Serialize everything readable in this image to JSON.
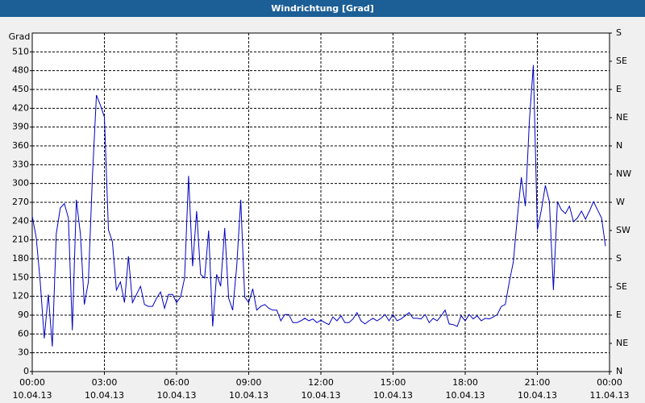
{
  "chart_data": {
    "type": "line",
    "title": "Windrichtung [Grad]",
    "y_axis_label": "Grad",
    "x": [
      0,
      10,
      20,
      30,
      40,
      50,
      60,
      70,
      80,
      90,
      100,
      110,
      120,
      130,
      140,
      150,
      160,
      170,
      180,
      190,
      200,
      210,
      220,
      230,
      240,
      250,
      260,
      270,
      280,
      290,
      300,
      310,
      320,
      330,
      340,
      350,
      360,
      370,
      380,
      390,
      400,
      410,
      420,
      430,
      440,
      450,
      460,
      470,
      480,
      490,
      500,
      510,
      520,
      530,
      540,
      550,
      560,
      570,
      580,
      590,
      600,
      610,
      620,
      630,
      640,
      650,
      660,
      670,
      680,
      690,
      700,
      710,
      720,
      730,
      740,
      750,
      760,
      770,
      780,
      790,
      800,
      810,
      820,
      830,
      840,
      850,
      860,
      870,
      880,
      890,
      900,
      910,
      920,
      930,
      940,
      950,
      960,
      970,
      980,
      990,
      1000,
      1010,
      1020,
      1030,
      1040,
      1050,
      1060,
      1070,
      1080,
      1090,
      1100,
      1110,
      1120,
      1130,
      1140,
      1150,
      1160,
      1170,
      1180,
      1190,
      1200,
      1210,
      1220,
      1230,
      1240,
      1250,
      1260,
      1270,
      1280,
      1290,
      1300,
      1310,
      1320,
      1330,
      1340,
      1350,
      1360,
      1370,
      1380,
      1390,
      1400,
      1410,
      1420,
      1430
    ],
    "series": [
      {
        "color": "#0000c0",
        "values": [
          248,
          213,
          143,
          53,
          123,
          40,
          220,
          261,
          268,
          245,
          66,
          274,
          220,
          107,
          143,
          310,
          441,
          425,
          406,
          226,
          207,
          130,
          143,
          110,
          184,
          110,
          123,
          136,
          107,
          104,
          104,
          117,
          127,
          101,
          123,
          123,
          110,
          119,
          149,
          312,
          168,
          256,
          155,
          149,
          225,
          72,
          155,
          136,
          229,
          117,
          98,
          168,
          274,
          119,
          110,
          132,
          98,
          104,
          107,
          101,
          98,
          98,
          81,
          91,
          91,
          78,
          78,
          81,
          85,
          81,
          84,
          78,
          82,
          78,
          75,
          87,
          81,
          89,
          78,
          78,
          84,
          94,
          81,
          76,
          81,
          85,
          81,
          85,
          91,
          81,
          91,
          81,
          84,
          89,
          94,
          85,
          85,
          84,
          91,
          78,
          85,
          81,
          89,
          98,
          76,
          75,
          72,
          89,
          81,
          91,
          84,
          89,
          81,
          85,
          84,
          87,
          91,
          104,
          107,
          143,
          175,
          245,
          310,
          264,
          400,
          489,
          226,
          258,
          297,
          271,
          130,
          271,
          258,
          252,
          264,
          239,
          245,
          256,
          243,
          256,
          271,
          258,
          245,
          200
        ]
      }
    ],
    "xlim": [
      0,
      1440
    ],
    "xticks": [
      {
        "value": 0,
        "label": "00:00"
      },
      {
        "value": 180,
        "label": "03:00"
      },
      {
        "value": 360,
        "label": "06:00"
      },
      {
        "value": 540,
        "label": "09:00"
      },
      {
        "value": 720,
        "label": "12:00"
      },
      {
        "value": 900,
        "label": "15:00"
      },
      {
        "value": 1080,
        "label": "18:00"
      },
      {
        "value": 1260,
        "label": "21:00"
      },
      {
        "value": 1440,
        "label": "00:00"
      }
    ],
    "xtick_dates": [
      "10.04.13",
      "10.04.13",
      "10.04.13",
      "10.04.13",
      "10.04.13",
      "10.04.13",
      "10.04.13",
      "10.04.13",
      "11.04.13"
    ],
    "ylim": [
      0,
      540
    ],
    "yticks": [
      0,
      30,
      60,
      90,
      120,
      150,
      180,
      210,
      240,
      270,
      300,
      330,
      360,
      390,
      420,
      450,
      480,
      510
    ],
    "y2lim": [
      0,
      540
    ],
    "y2ticks": [
      {
        "value": 0,
        "label": "N"
      },
      {
        "value": 45,
        "label": "NE"
      },
      {
        "value": 90,
        "label": "E"
      },
      {
        "value": 135,
        "label": "SE"
      },
      {
        "value": 180,
        "label": "S"
      },
      {
        "value": 225,
        "label": "SW"
      },
      {
        "value": 270,
        "label": "W"
      },
      {
        "value": 315,
        "label": "NW"
      },
      {
        "value": 360,
        "label": "N"
      },
      {
        "value": 405,
        "label": "NE"
      },
      {
        "value": 450,
        "label": "E"
      },
      {
        "value": 495,
        "label": "SE"
      },
      {
        "value": 540,
        "label": "S"
      }
    ],
    "grid": true
  }
}
